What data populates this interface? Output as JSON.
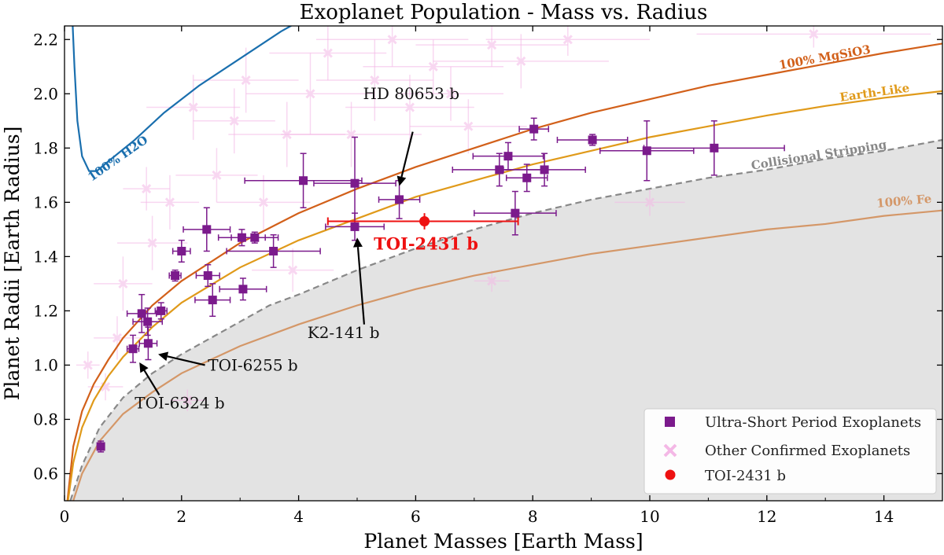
{
  "chart_data": {
    "type": "scatter",
    "title": "Exoplanet Population - Mass vs. Radius",
    "xlabel": "Planet Masses [Earth Mass]",
    "ylabel": "Planet Radii [Earth Radius]",
    "xlim": [
      0,
      15
    ],
    "ylim": [
      0.5,
      2.25
    ],
    "xticks": [
      "0",
      "2",
      "4",
      "6",
      "8",
      "10",
      "12",
      "14"
    ],
    "xtick_values": [
      0,
      2,
      4,
      6,
      8,
      10,
      12,
      14
    ],
    "yticks": [
      "0.6",
      "0.8",
      "1.0",
      "1.2",
      "1.4",
      "1.6",
      "1.8",
      "2.0",
      "2.2"
    ],
    "ytick_values": [
      0.6,
      0.8,
      1.0,
      1.2,
      1.4,
      1.6,
      1.8,
      2.0,
      2.2
    ],
    "colors": {
      "usp": "#7b1a8c",
      "other": "#f4b8e6",
      "toi": "#ee1111",
      "h2o": "#1a6fae",
      "mgsio3": "#d2601a",
      "earth": "#e09a1a",
      "fe": "#d49768",
      "stripping": "#888888",
      "shade": "#e3e3e3"
    },
    "legend": {
      "position": "lower-right",
      "entries": [
        "Ultra-Short Period Exoplanets",
        "Other Confirmed Exoplanets",
        "TOI-2431 b"
      ]
    },
    "curves": [
      {
        "name": "100% H2O",
        "label": "100% H2O",
        "points": [
          [
            0.13,
            2.3
          ],
          [
            0.17,
            2.1
          ],
          [
            0.22,
            1.9
          ],
          [
            0.3,
            1.77
          ],
          [
            0.42,
            1.715
          ],
          [
            0.55,
            1.715
          ],
          [
            0.8,
            1.76
          ],
          [
            1.2,
            1.83
          ],
          [
            1.7,
            1.93
          ],
          [
            2.3,
            2.03
          ],
          [
            3.0,
            2.13
          ],
          [
            3.7,
            2.23
          ],
          [
            4.2,
            2.29
          ]
        ]
      },
      {
        "name": "100% MgSiO3",
        "label": "100% MgSiO3",
        "points": [
          [
            0.05,
            0.5
          ],
          [
            0.15,
            0.7
          ],
          [
            0.3,
            0.83
          ],
          [
            0.5,
            0.93
          ],
          [
            0.75,
            1.02
          ],
          [
            1.0,
            1.1
          ],
          [
            1.5,
            1.22
          ],
          [
            2.0,
            1.31
          ],
          [
            3.0,
            1.45
          ],
          [
            4.0,
            1.56
          ],
          [
            5.0,
            1.65
          ],
          [
            6.0,
            1.73
          ],
          [
            7.0,
            1.8
          ],
          [
            8.0,
            1.87
          ],
          [
            9.0,
            1.93
          ],
          [
            10.0,
            1.98
          ],
          [
            11.0,
            2.03
          ],
          [
            12.0,
            2.07
          ],
          [
            13.0,
            2.11
          ],
          [
            14.0,
            2.15
          ],
          [
            15.0,
            2.185
          ]
        ]
      },
      {
        "name": "Earth-Like",
        "label": "Earth-Like",
        "points": [
          [
            0.06,
            0.5
          ],
          [
            0.15,
            0.64
          ],
          [
            0.3,
            0.77
          ],
          [
            0.5,
            0.87
          ],
          [
            0.75,
            0.96
          ],
          [
            1.0,
            1.03
          ],
          [
            1.5,
            1.14
          ],
          [
            2.0,
            1.23
          ],
          [
            3.0,
            1.36
          ],
          [
            4.0,
            1.46
          ],
          [
            5.0,
            1.54
          ],
          [
            6.0,
            1.62
          ],
          [
            7.0,
            1.68
          ],
          [
            8.0,
            1.74
          ],
          [
            9.0,
            1.79
          ],
          [
            10.0,
            1.84
          ],
          [
            11.0,
            1.88
          ],
          [
            12.0,
            1.92
          ],
          [
            13.0,
            1.955
          ],
          [
            14.0,
            1.985
          ],
          [
            15.0,
            2.01
          ]
        ]
      },
      {
        "name": "Collisional Stripping",
        "label": "Collisional Stripping",
        "points": [
          [
            0.1,
            0.5
          ],
          [
            0.3,
            0.63
          ],
          [
            0.6,
            0.77
          ],
          [
            1.0,
            0.88
          ],
          [
            1.5,
            0.97
          ],
          [
            2.0,
            1.04
          ],
          [
            2.5,
            1.1
          ],
          [
            3.0,
            1.16
          ],
          [
            3.5,
            1.22
          ],
          [
            4.0,
            1.26
          ],
          [
            5.0,
            1.35
          ],
          [
            6.0,
            1.43
          ],
          [
            7.0,
            1.5
          ],
          [
            8.0,
            1.56
          ],
          [
            9.0,
            1.61
          ],
          [
            10.0,
            1.65
          ],
          [
            11.0,
            1.69
          ],
          [
            12.0,
            1.72
          ],
          [
            13.0,
            1.76
          ],
          [
            14.0,
            1.79
          ],
          [
            15.0,
            1.83
          ]
        ]
      },
      {
        "name": "100% Fe",
        "label": "100% Fe",
        "points": [
          [
            0.15,
            0.5
          ],
          [
            0.3,
            0.6
          ],
          [
            0.6,
            0.72
          ],
          [
            1.0,
            0.82
          ],
          [
            1.5,
            0.9
          ],
          [
            2.0,
            0.97
          ],
          [
            2.5,
            1.02
          ],
          [
            3.0,
            1.07
          ],
          [
            4.0,
            1.15
          ],
          [
            5.0,
            1.22
          ],
          [
            6.0,
            1.28
          ],
          [
            7.0,
            1.33
          ],
          [
            8.0,
            1.37
          ],
          [
            9.0,
            1.41
          ],
          [
            10.0,
            1.44
          ],
          [
            11.0,
            1.47
          ],
          [
            12.0,
            1.5
          ],
          [
            13.0,
            1.52
          ],
          [
            14.0,
            1.55
          ],
          [
            15.0,
            1.57
          ]
        ]
      }
    ],
    "curve_labels": [
      {
        "text": "100% H2O",
        "x": 0.95,
        "y": 1.75,
        "rotation": -35,
        "color": "#1a6fae"
      },
      {
        "text": "100% MgSiO3",
        "x": 13.0,
        "y": 2.12,
        "rotation": -10,
        "color": "#d2601a"
      },
      {
        "text": "Earth-Like",
        "x": 13.85,
        "y": 1.99,
        "rotation": -8,
        "color": "#e09a1a"
      },
      {
        "text": "Collisional Stripping",
        "x": 12.9,
        "y": 1.76,
        "rotation": -9,
        "color": "#888888"
      },
      {
        "text": "100% Fe",
        "x": 14.35,
        "y": 1.59,
        "rotation": -5,
        "color": "#d49768"
      }
    ],
    "usp_planets": [
      {
        "x": 0.62,
        "y": 0.7,
        "xerr": 0.05,
        "yerr": 0.02
      },
      {
        "x": 1.17,
        "y": 1.06,
        "xerr": 0.1,
        "yerr": 0.05
      },
      {
        "x": 1.43,
        "y": 1.08,
        "xerr": 0.15,
        "yerr": 0.06
      },
      {
        "x": 1.32,
        "y": 1.19,
        "xerr": 0.25,
        "yerr": 0.07
      },
      {
        "x": 1.42,
        "y": 1.16,
        "xerr": 0.25,
        "yerr": 0.05
      },
      {
        "x": 1.65,
        "y": 1.2,
        "xerr": 0.1,
        "yerr": 0.03
      },
      {
        "x": 1.89,
        "y": 1.33,
        "xerr": 0.1,
        "yerr": 0.02
      },
      {
        "x": 2.0,
        "y": 1.42,
        "xerr": 0.15,
        "yerr": 0.04
      },
      {
        "x": 2.43,
        "y": 1.5,
        "xerr": 0.4,
        "yerr": 0.08
      },
      {
        "x": 2.45,
        "y": 1.33,
        "xerr": 0.2,
        "yerr": 0.04
      },
      {
        "x": 2.53,
        "y": 1.24,
        "xerr": 0.3,
        "yerr": 0.06
      },
      {
        "x": 3.03,
        "y": 1.47,
        "xerr": 0.4,
        "yerr": 0.03
      },
      {
        "x": 3.25,
        "y": 1.47,
        "xerr": 0.4,
        "yerr": 0.02
      },
      {
        "x": 3.05,
        "y": 1.28,
        "xerr": 0.4,
        "yerr": 0.04
      },
      {
        "x": 3.57,
        "y": 1.42,
        "xerr": 0.8,
        "yerr": 0.06
      },
      {
        "x": 4.08,
        "y": 1.68,
        "xerr": 1.0,
        "yerr": 0.1
      },
      {
        "x": 4.96,
        "y": 1.67,
        "xerr": 0.7,
        "yerr": 0.17
      },
      {
        "x": 4.96,
        "y": 1.51,
        "xerr": 0.5,
        "yerr": 0.05
      },
      {
        "x": 5.72,
        "y": 1.61,
        "xerr": 0.35,
        "yerr": 0.07
      },
      {
        "x": 7.58,
        "y": 1.77,
        "xerr": 0.6,
        "yerr": 0.05
      },
      {
        "x": 7.43,
        "y": 1.72,
        "xerr": 0.8,
        "yerr": 0.06
      },
      {
        "x": 8.02,
        "y": 1.87,
        "xerr": 0.25,
        "yerr": 0.04
      },
      {
        "x": 7.9,
        "y": 1.69,
        "xerr": 0.35,
        "yerr": 0.05
      },
      {
        "x": 8.2,
        "y": 1.72,
        "xerr": 0.7,
        "yerr": 0.06
      },
      {
        "x": 9.02,
        "y": 1.83,
        "xerr": 0.6,
        "yerr": 0.02
      },
      {
        "x": 9.95,
        "y": 1.79,
        "xerr": 0.8,
        "yerr": 0.11
      },
      {
        "x": 11.1,
        "y": 1.8,
        "xerr": 1.2,
        "yerr": 0.1
      },
      {
        "x": 7.7,
        "y": 1.56,
        "xerr": 0.7,
        "yerr": 0.08
      }
    ],
    "other_planets": [
      {
        "x": 0.4,
        "y": 1.0,
        "xerr": 0.2,
        "yerr": 0.05
      },
      {
        "x": 0.7,
        "y": 0.92,
        "xerr": 0.3,
        "yerr": 0.05
      },
      {
        "x": 0.9,
        "y": 1.1,
        "xerr": 0.4,
        "yerr": 0.08
      },
      {
        "x": 1.0,
        "y": 1.3,
        "xerr": 0.5,
        "yerr": 0.1
      },
      {
        "x": 1.5,
        "y": 1.45,
        "xerr": 0.6,
        "yerr": 0.1
      },
      {
        "x": 1.8,
        "y": 1.6,
        "xerr": 0.5,
        "yerr": 0.1
      },
      {
        "x": 2.2,
        "y": 1.95,
        "xerr": 0.8,
        "yerr": 0.12
      },
      {
        "x": 2.6,
        "y": 1.7,
        "xerr": 0.7,
        "yerr": 0.1
      },
      {
        "x": 2.9,
        "y": 1.9,
        "xerr": 0.7,
        "yerr": 0.12
      },
      {
        "x": 3.1,
        "y": 2.05,
        "xerr": 0.9,
        "yerr": 0.12
      },
      {
        "x": 3.4,
        "y": 1.6,
        "xerr": 0.8,
        "yerr": 0.1
      },
      {
        "x": 3.8,
        "y": 1.85,
        "xerr": 1.0,
        "yerr": 0.12
      },
      {
        "x": 4.2,
        "y": 2.0,
        "xerr": 1.1,
        "yerr": 0.15
      },
      {
        "x": 4.5,
        "y": 2.15,
        "xerr": 1.0,
        "yerr": 0.1
      },
      {
        "x": 4.9,
        "y": 1.85,
        "xerr": 1.2,
        "yerr": 0.12
      },
      {
        "x": 5.3,
        "y": 2.05,
        "xerr": 1.0,
        "yerr": 0.15
      },
      {
        "x": 5.6,
        "y": 2.2,
        "xerr": 1.3,
        "yerr": 0.1
      },
      {
        "x": 5.9,
        "y": 1.95,
        "xerr": 1.1,
        "yerr": 0.12
      },
      {
        "x": 6.3,
        "y": 2.1,
        "xerr": 1.2,
        "yerr": 0.1
      },
      {
        "x": 6.6,
        "y": 2.0,
        "xerr": 0.9,
        "yerr": 0.1
      },
      {
        "x": 6.9,
        "y": 1.88,
        "xerr": 1.0,
        "yerr": 0.1
      },
      {
        "x": 7.3,
        "y": 2.18,
        "xerr": 1.3,
        "yerr": 0.08
      },
      {
        "x": 7.8,
        "y": 2.12,
        "xerr": 1.5,
        "yerr": 0.1
      },
      {
        "x": 8.6,
        "y": 2.2,
        "xerr": 1.4,
        "yerr": 0.06
      },
      {
        "x": 10.0,
        "y": 1.6,
        "xerr": 0.6,
        "yerr": 0.05
      },
      {
        "x": 12.8,
        "y": 2.22,
        "xerr": 2.0,
        "yerr": 0.05
      },
      {
        "x": 7.3,
        "y": 1.31,
        "xerr": 0.3,
        "yerr": 0.04
      },
      {
        "x": 2.1,
        "y": 0.87,
        "xerr": 0.3,
        "yerr": 0.04
      },
      {
        "x": 1.4,
        "y": 1.65,
        "xerr": 0.4,
        "yerr": 0.08
      },
      {
        "x": 3.9,
        "y": 1.35,
        "xerr": 0.7,
        "yerr": 0.08
      }
    ],
    "toi_2431b": {
      "x": 6.15,
      "y": 1.53,
      "xerr_minus": 1.65,
      "xerr_plus": 1.6,
      "yerr": 0.03,
      "label": "TOI-2431 b"
    },
    "annotations": [
      {
        "text": "HD 80653 b",
        "text_x": 5.1,
        "text_y": 1.98,
        "point_x": 5.72,
        "point_y": 1.66
      },
      {
        "text": "K2-141 b",
        "text_x": 4.15,
        "text_y": 1.1,
        "point_x": 5.0,
        "point_y": 1.47
      },
      {
        "text": "TOI-6255 b",
        "text_x": 2.45,
        "text_y": 0.98,
        "point_x": 1.6,
        "point_y": 1.04
      },
      {
        "text": "TOI-6324 b",
        "text_x": 1.2,
        "text_y": 0.84,
        "point_x": 1.28,
        "point_y": 1.01
      }
    ]
  }
}
